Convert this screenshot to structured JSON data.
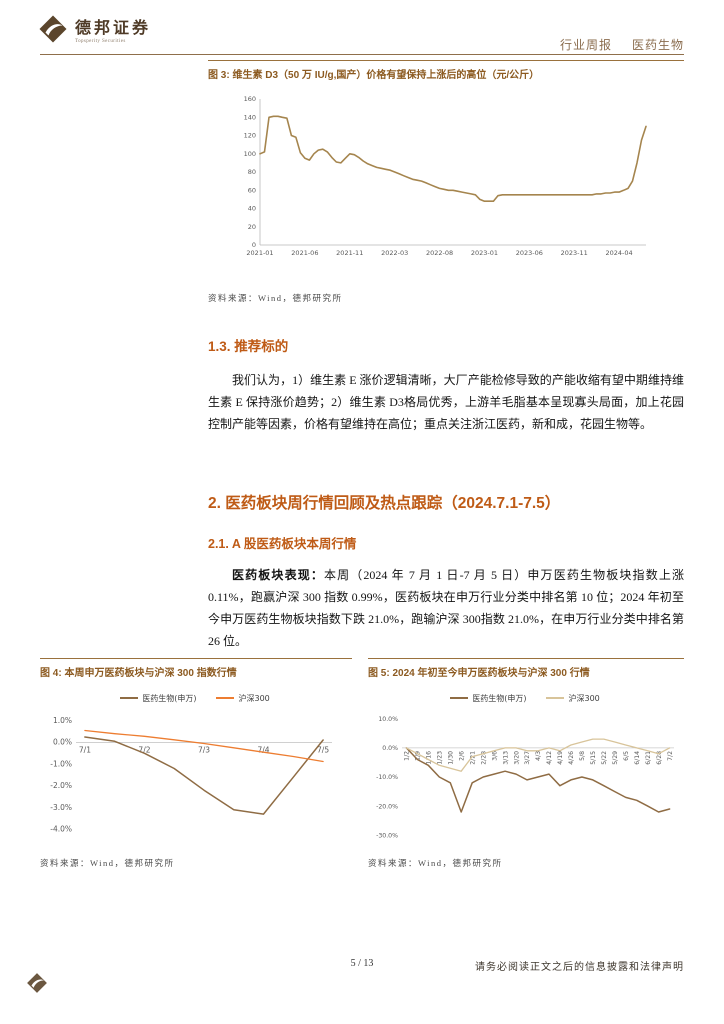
{
  "header": {
    "brand": "德邦证券",
    "brand_sub": "Topsperity Securities",
    "report_type": "行业周报",
    "industry": "医药生物"
  },
  "figures": {
    "fig3": {
      "title": "图 3: 维生素 D3（50 万 IU/g,国产）价格有望保持上涨后的高位（元/公斤）",
      "source": "资料来源：Wind，德邦研究所"
    },
    "fig4": {
      "title": "图 4: 本周申万医药板块与沪深 300 指数行情",
      "source": "资料来源：Wind，德邦研究所"
    },
    "fig5": {
      "title": "图 5: 2024 年初至今申万医药板块与沪深 300 行情",
      "source": "资料来源：Wind，德邦研究所"
    }
  },
  "sections": {
    "s13_heading": "1.3. 推荐标的",
    "s13_para": "我们认为，1）维生素 E 涨价逻辑清晰，大厂产能检修导致的产能收缩有望中期维持维生素 E 保持涨价趋势；2）维生素 D3格局优秀，上游羊毛脂基本呈现寡头局面，加上花园控制产能等因素，价格有望维持在高位；重点关注浙江医药，新和成，花园生物等。",
    "s2_heading": "2. 医药板块周行情回顾及热点跟踪（2024.7.1-7.5）",
    "s21_heading": "2.1. A 股医药板块本周行情",
    "s21_para_lead": "医药板块表现：",
    "s21_para_rest": "本周（2024 年 7 月 1 日-7 月 5 日）申万医药生物板块指数上涨 0.11%，跑赢沪深 300 指数 0.99%，医药板块在申万行业分类中排名第 10 位；2024 年初至今申万医药生物板块指数下跌 21.0%，跑输沪深 300指数 21.0%，在申万行业分类中排名第 26 位。"
  },
  "footer": {
    "page_number": "5 / 13",
    "disclaimer": "请务必阅读正文之后的信息披露和法律声明"
  },
  "chart_data": [
    {
      "type": "line",
      "title": "维生素 D3（50 万 IU/g,国产）价格（元/公斤）",
      "ylim": [
        0,
        160
      ],
      "yticks": [
        0,
        20,
        40,
        60,
        80,
        100,
        120,
        140,
        160
      ],
      "ytick_decimals": 0,
      "ytick_suffix": "",
      "xticks": [
        {
          "pos": 0,
          "label": "2021-01"
        },
        {
          "pos": 10,
          "label": "2021-06"
        },
        {
          "pos": 20,
          "label": "2021-11"
        },
        {
          "pos": 30,
          "label": "2022-03"
        },
        {
          "pos": 40,
          "label": "2022-08"
        },
        {
          "pos": 50,
          "label": "2023-01"
        },
        {
          "pos": 60,
          "label": "2023-06"
        },
        {
          "pos": 70,
          "label": "2023-11"
        },
        {
          "pos": 80,
          "label": "2024-04"
        }
      ],
      "series": [
        {
          "name": "维生素D3（50万IU/g,国产）",
          "color": "#a5854e",
          "values": [
            100,
            102,
            140,
            141,
            141,
            140,
            139,
            120,
            118,
            101,
            95,
            93,
            100,
            104,
            105,
            102,
            96,
            91,
            90,
            95,
            100,
            99,
            96,
            92,
            89,
            87,
            85,
            84,
            83,
            82,
            80,
            78,
            76,
            74,
            72,
            71,
            70,
            68,
            66,
            64,
            62,
            61,
            60,
            60,
            59,
            58,
            57,
            56,
            55,
            50,
            48,
            48,
            48,
            54,
            55,
            55,
            55,
            55,
            55,
            55,
            55,
            55,
            55,
            55,
            55,
            55,
            55,
            55,
            55,
            55,
            55,
            55,
            55,
            55,
            55,
            56,
            56,
            57,
            57,
            58,
            58,
            60,
            62,
            70,
            90,
            115,
            130
          ]
        }
      ]
    },
    {
      "type": "line",
      "title": "本周申万医药板块与沪深 300 指数行情",
      "ylim": [
        -4.4,
        1.4
      ],
      "yticks": [
        1,
        0,
        -1,
        -2,
        -3,
        -4
      ],
      "ytick_decimals": 1,
      "ytick_suffix": "%",
      "xticks": [
        {
          "pos": 0,
          "label": "7/1"
        },
        {
          "pos": 1,
          "label": "7/2"
        },
        {
          "pos": 2,
          "label": "7/3"
        },
        {
          "pos": 3,
          "label": "7/4"
        },
        {
          "pos": 4,
          "label": "7/5"
        }
      ],
      "series": [
        {
          "name": "医药生物(申万)",
          "color": "#8f6c44",
          "x": [
            0,
            0.5,
            1,
            1.5,
            2,
            2.5,
            3,
            3.5,
            4
          ],
          "values": [
            0.25,
            0.05,
            -0.5,
            -1.2,
            -2.2,
            -3.1,
            -3.3,
            -1.6,
            0.11
          ]
        },
        {
          "name": "沪深300",
          "color": "#ed7d31",
          "x": [
            0,
            0.5,
            1,
            1.5,
            2,
            2.5,
            3,
            3.5,
            4
          ],
          "values": [
            0.55,
            0.4,
            0.28,
            0.12,
            -0.05,
            -0.25,
            -0.45,
            -0.65,
            -0.88
          ]
        }
      ]
    },
    {
      "type": "line",
      "title": "2024 年初至今申万医药板块与沪深 300 行情",
      "ylim": [
        -33,
        13
      ],
      "yticks": [
        10,
        0,
        -10,
        -20,
        -30
      ],
      "ytick_decimals": 1,
      "ytick_suffix": "%",
      "xticks": [
        {
          "pos": 0,
          "label": "1/2"
        },
        {
          "pos": 1,
          "label": "1/9"
        },
        {
          "pos": 2,
          "label": "1/16"
        },
        {
          "pos": 3,
          "label": "1/23"
        },
        {
          "pos": 4,
          "label": "1/30"
        },
        {
          "pos": 5,
          "label": "2/6"
        },
        {
          "pos": 6,
          "label": "2/21"
        },
        {
          "pos": 7,
          "label": "2/28"
        },
        {
          "pos": 8,
          "label": "3/6"
        },
        {
          "pos": 9,
          "label": "3/13"
        },
        {
          "pos": 10,
          "label": "3/20"
        },
        {
          "pos": 11,
          "label": "3/27"
        },
        {
          "pos": 12,
          "label": "4/3"
        },
        {
          "pos": 13,
          "label": "4/12"
        },
        {
          "pos": 14,
          "label": "4/19"
        },
        {
          "pos": 15,
          "label": "4/26"
        },
        {
          "pos": 16,
          "label": "5/8"
        },
        {
          "pos": 17,
          "label": "5/15"
        },
        {
          "pos": 18,
          "label": "5/22"
        },
        {
          "pos": 19,
          "label": "5/29"
        },
        {
          "pos": 20,
          "label": "6/5"
        },
        {
          "pos": 21,
          "label": "6/14"
        },
        {
          "pos": 22,
          "label": "6/21"
        },
        {
          "pos": 23,
          "label": "6/28"
        },
        {
          "pos": 24,
          "label": "7/2"
        }
      ],
      "series": [
        {
          "name": "医药生物(申万)",
          "color": "#8f6c44",
          "values": [
            0,
            -4,
            -6,
            -10,
            -12,
            -22,
            -12,
            -10,
            -9,
            -8,
            -9,
            -11,
            -10,
            -9,
            -13,
            -11,
            -10,
            -11,
            -13,
            -15,
            -17,
            -18,
            -20,
            -22,
            -21
          ]
        },
        {
          "name": "沪深300",
          "color": "#d8c49a",
          "values": [
            0,
            -2,
            -4,
            -6,
            -7,
            -8,
            -3,
            -2,
            -1,
            0,
            0,
            -1,
            -1,
            0,
            -1,
            1,
            2,
            3,
            3,
            2,
            1,
            0,
            -1,
            -2,
            0
          ]
        }
      ]
    }
  ]
}
